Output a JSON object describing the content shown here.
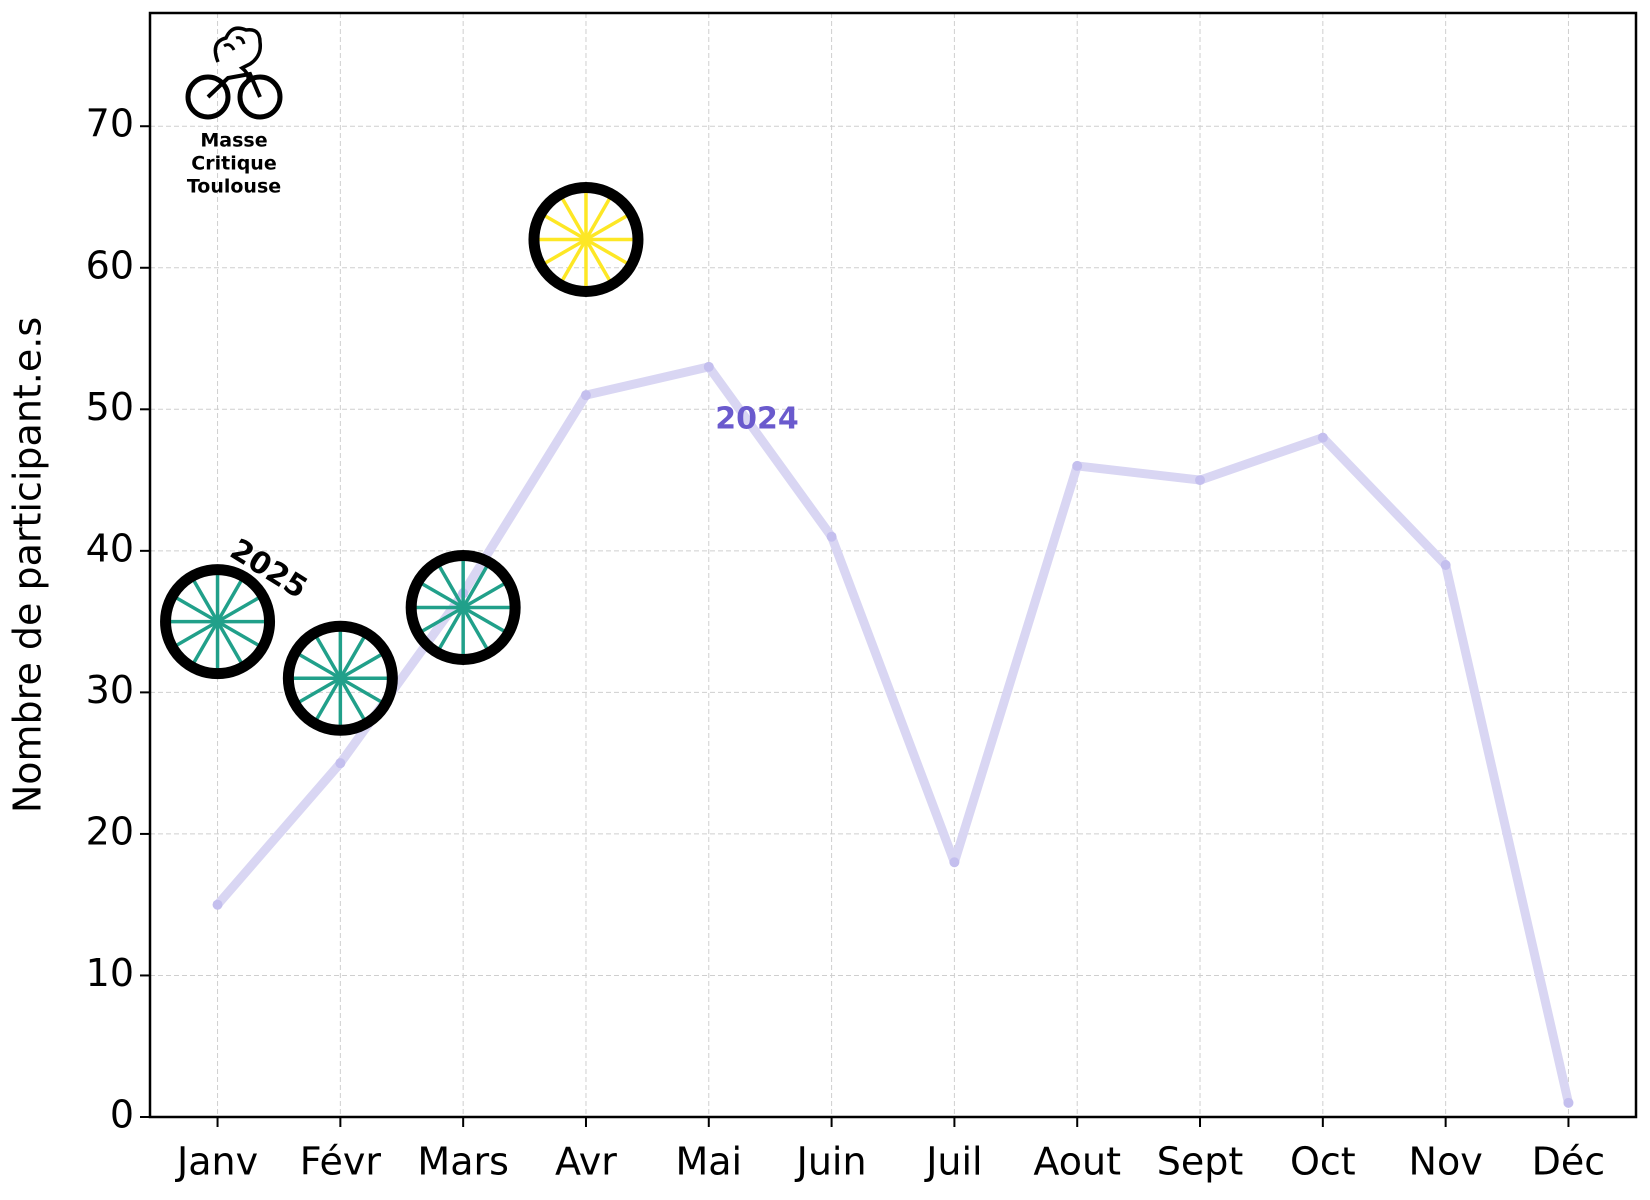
{
  "chart_data": {
    "type": "line",
    "ylabel": "Nombre de participant.e.s",
    "categories": [
      "Janv",
      "Févr",
      "Mars",
      "Avr",
      "Mai",
      "Juin",
      "Juil",
      "Aout",
      "Sept",
      "Oct",
      "Nov",
      "Déc"
    ],
    "series": [
      {
        "name": "2024",
        "color": "#d9d6f3",
        "values": [
          15,
          25,
          37,
          51,
          53,
          41,
          18,
          46,
          45,
          48,
          39,
          1
        ]
      },
      {
        "name": "2025",
        "color": "#21a08a",
        "marker": "wheel",
        "point_colors": [
          "#21a08a",
          "#21a08a",
          "#21a08a",
          "#fde725"
        ],
        "values": [
          35,
          31,
          36,
          62,
          null,
          null,
          null,
          null,
          null,
          null,
          null,
          null
        ]
      }
    ],
    "annotations": [
      {
        "text": "2025",
        "color": "#000000"
      },
      {
        "text": "2024",
        "color": "#6a5acd"
      }
    ],
    "logo": {
      "lines": [
        "Masse",
        "Critique",
        "Toulouse"
      ]
    },
    "ylim": [
      0,
      78
    ],
    "yticks": [
      0,
      10,
      20,
      30,
      40,
      50,
      60,
      70
    ],
    "grid": true
  }
}
